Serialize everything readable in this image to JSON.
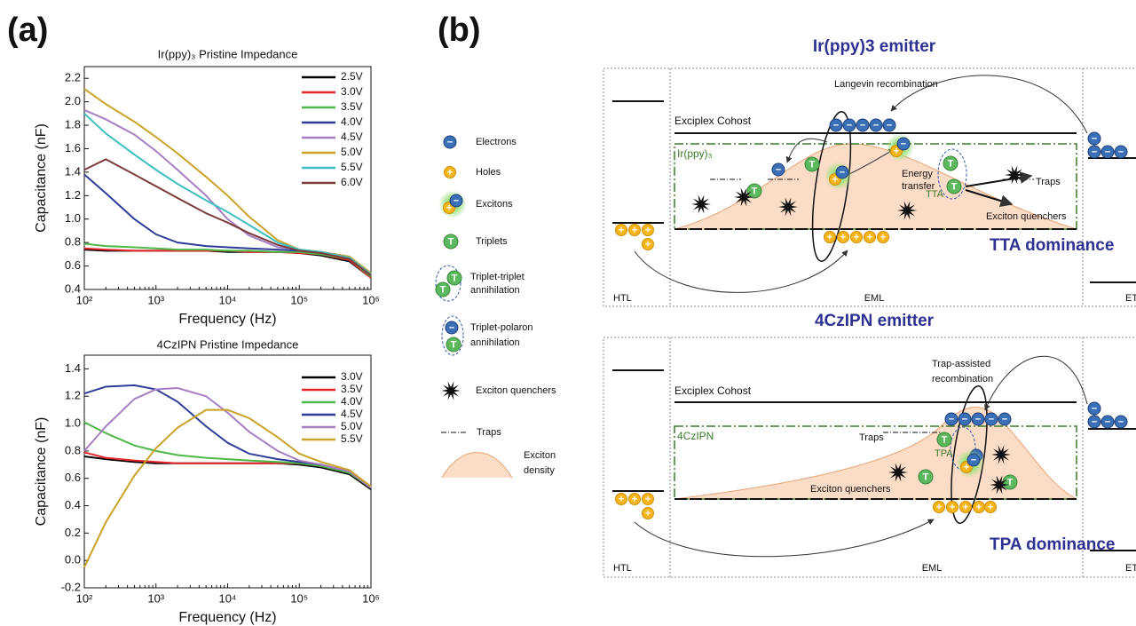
{
  "panel_labels": [
    "(a)",
    "(b)"
  ],
  "chart_data": [
    {
      "type": "line",
      "title": "Ir(ppy)₃ Pristine Impedance",
      "xlabel": "Frequency (Hz)",
      "ylabel": "Capacitance (nF)",
      "xscale": "log",
      "x": [
        100,
        200,
        500,
        1000,
        2000,
        5000,
        10000,
        20000,
        50000,
        100000,
        200000,
        500000,
        1000000
      ],
      "xlim": [
        100,
        1000000
      ],
      "xticks": [
        {
          "value": 100,
          "label": "10²"
        },
        {
          "value": 1000,
          "label": "10³"
        },
        {
          "value": 10000,
          "label": "10⁴"
        },
        {
          "value": 100000,
          "label": "10⁵"
        },
        {
          "value": 1000000,
          "label": "10⁶"
        }
      ],
      "ylim": [
        0.4,
        2.3
      ],
      "yticks": [
        0.4,
        0.6,
        0.8,
        {
          "value": 1,
          "label": "1.0"
        },
        1.2,
        1.4,
        1.6,
        1.8,
        {
          "value": 2,
          "label": "2.0"
        },
        2.2
      ],
      "legend": "upper right",
      "series": [
        {
          "name": "2.5V",
          "color": "#000000",
          "values": [
            0.74,
            0.73,
            0.73,
            0.73,
            0.73,
            0.73,
            0.72,
            0.72,
            0.72,
            0.71,
            0.69,
            0.64,
            0.5
          ]
        },
        {
          "name": "3.0V",
          "color": "#e8272b",
          "values": [
            0.75,
            0.74,
            0.73,
            0.73,
            0.73,
            0.73,
            0.73,
            0.72,
            0.72,
            0.71,
            0.7,
            0.65,
            0.5
          ]
        },
        {
          "name": "3.5V",
          "color": "#4cb848",
          "values": [
            0.79,
            0.77,
            0.76,
            0.75,
            0.74,
            0.74,
            0.73,
            0.73,
            0.72,
            0.72,
            0.7,
            0.66,
            0.51
          ]
        },
        {
          "name": "4.0V",
          "color": "#2e3d98",
          "values": [
            1.38,
            1.22,
            1.0,
            0.87,
            0.8,
            0.77,
            0.76,
            0.75,
            0.74,
            0.73,
            0.72,
            0.68,
            0.52
          ]
        },
        {
          "name": "4.5V",
          "color": "#a67ec2",
          "values": [
            1.93,
            1.85,
            1.72,
            1.58,
            1.42,
            1.2,
            1.0,
            0.86,
            0.76,
            0.74,
            0.72,
            0.67,
            0.53
          ]
        },
        {
          "name": "5.0V",
          "color": "#c9a227",
          "values": [
            2.11,
            1.98,
            1.83,
            1.7,
            1.56,
            1.36,
            1.2,
            1.02,
            0.82,
            0.74,
            0.72,
            0.68,
            0.54
          ]
        },
        {
          "name": "5.5V",
          "color": "#3fbfbf",
          "values": [
            1.9,
            1.73,
            1.55,
            1.42,
            1.3,
            1.16,
            1.06,
            0.95,
            0.8,
            0.74,
            0.72,
            0.67,
            0.53
          ]
        },
        {
          "name": "6.0V",
          "color": "#7b3a3a",
          "values": [
            1.42,
            1.51,
            1.38,
            1.28,
            1.18,
            1.05,
            0.97,
            0.88,
            0.78,
            0.73,
            0.71,
            0.66,
            0.52
          ]
        }
      ]
    },
    {
      "type": "line",
      "title": "4CzIPN Pristine Impedance",
      "xlabel": "Frequency (Hz)",
      "ylabel": "Capacitance (nF)",
      "xscale": "log",
      "x": [
        100,
        200,
        500,
        1000,
        2000,
        5000,
        10000,
        20000,
        50000,
        100000,
        200000,
        500000,
        1000000
      ],
      "xlim": [
        100,
        1000000
      ],
      "xticks": [
        {
          "value": 100,
          "label": "10²"
        },
        {
          "value": 1000,
          "label": "10³"
        },
        {
          "value": 10000,
          "label": "10⁴"
        },
        {
          "value": 100000,
          "label": "10⁵"
        },
        {
          "value": 1000000,
          "label": "10⁶"
        }
      ],
      "ylim": [
        -0.2,
        1.5
      ],
      "yticks": [
        -0.2,
        {
          "value": 0,
          "label": "0.0"
        },
        0.2,
        0.4,
        0.6,
        0.8,
        {
          "value": 1,
          "label": "1.0"
        },
        1.2,
        1.4
      ],
      "legend": "upper right",
      "series": [
        {
          "name": "3.0V",
          "color": "#000000",
          "values": [
            0.76,
            0.74,
            0.72,
            0.71,
            0.71,
            0.71,
            0.71,
            0.71,
            0.71,
            0.7,
            0.68,
            0.63,
            0.52
          ]
        },
        {
          "name": "3.5V",
          "color": "#e8272b",
          "values": [
            0.79,
            0.75,
            0.73,
            0.72,
            0.71,
            0.71,
            0.71,
            0.71,
            0.71,
            0.71,
            0.69,
            0.64,
            0.53
          ]
        },
        {
          "name": "4.0V",
          "color": "#4cb848",
          "values": [
            1.01,
            0.93,
            0.84,
            0.8,
            0.77,
            0.75,
            0.74,
            0.73,
            0.72,
            0.71,
            0.69,
            0.64,
            0.53
          ]
        },
        {
          "name": "4.5V",
          "color": "#2e3d98",
          "values": [
            1.22,
            1.27,
            1.28,
            1.25,
            1.16,
            0.98,
            0.86,
            0.78,
            0.74,
            0.72,
            0.7,
            0.65,
            0.53
          ]
        },
        {
          "name": "5.0V",
          "color": "#a67ec2",
          "values": [
            0.8,
            0.98,
            1.18,
            1.25,
            1.26,
            1.2,
            1.08,
            0.94,
            0.8,
            0.73,
            0.7,
            0.65,
            0.53
          ]
        },
        {
          "name": "5.5V",
          "color": "#c9a227",
          "values": [
            -0.05,
            0.28,
            0.62,
            0.82,
            0.97,
            1.1,
            1.1,
            1.04,
            0.9,
            0.78,
            0.72,
            0.66,
            0.54
          ]
        }
      ]
    }
  ],
  "diagram": {
    "symbols": {
      "electron": "−",
      "hole": "+",
      "triplet": "T"
    },
    "legend": [
      [
        "Electrons"
      ],
      [
        "Holes"
      ],
      [
        "Excitons"
      ],
      [
        "Triplets"
      ],
      [
        "Triplet-triplet",
        "annihilation"
      ],
      [
        "Triplet-polaron",
        "annihilation"
      ],
      [
        "Exciton quenchers"
      ],
      [
        "Traps"
      ],
      [
        "Exciton",
        "density"
      ]
    ],
    "top": {
      "title": "Ir(ppy)3 emitter",
      "recombination": [
        "Langevin recombination"
      ],
      "cohost": "Exciplex Cohost",
      "emitter": "Ir(ppy)₃",
      "energy_transfer": [
        "Energy",
        "transfer"
      ],
      "annihilation": "TTA",
      "traps": "Traps",
      "quenchers": "Exciton quenchers",
      "dominance": "TTA dominance",
      "layers": [
        "HTL",
        "EML",
        "ET"
      ]
    },
    "bottom": {
      "title": "4CzIPN emitter",
      "recombination": [
        "Trap-assisted",
        "recombination"
      ],
      "cohost": "Exciplex Cohost",
      "emitter": "4CzIPN",
      "annihilation": "TPA",
      "traps": "Traps",
      "quenchers": "Exciton quenchers",
      "dominance": "TPA dominance",
      "layers": [
        "HTL",
        "EML",
        "ET"
      ]
    }
  }
}
